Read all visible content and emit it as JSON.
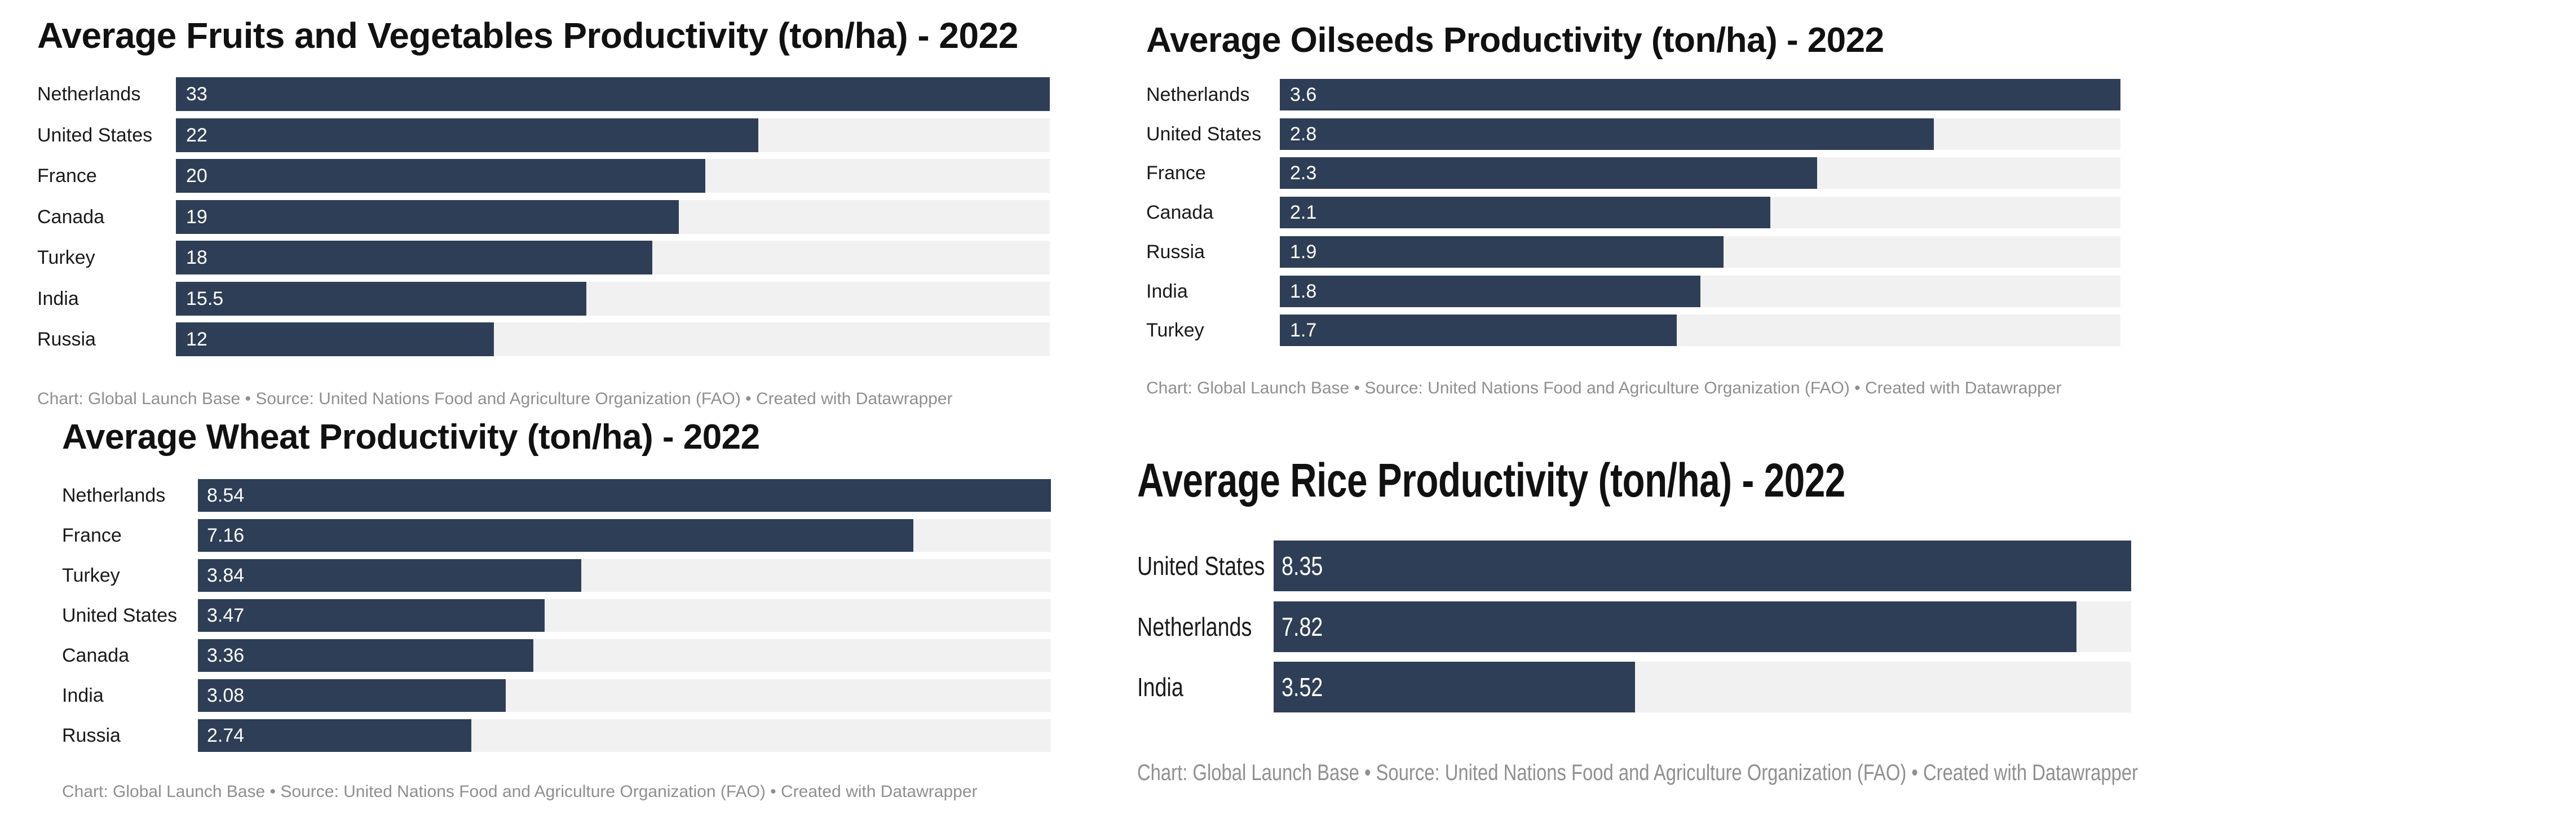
{
  "chart_data": [
    {
      "type": "bar",
      "orientation": "horizontal",
      "title": "Average Fruits and Vegetables Productivity (ton/ha) - 2022",
      "categories": [
        "Netherlands",
        "United States",
        "France",
        "Canada",
        "Turkey",
        "India",
        "Russia"
      ],
      "values": [
        33,
        22,
        20,
        19,
        18,
        15.5,
        12
      ],
      "value_labels": [
        "33",
        "22",
        "20",
        "19",
        "18",
        "15.5",
        "12"
      ],
      "xlim": [
        0,
        33
      ],
      "grid": false,
      "legend": "none",
      "footer": "Chart: Global Launch Base • Source: United Nations Food and Agriculture Organization (FAO) • Created with Datawrapper"
    },
    {
      "type": "bar",
      "orientation": "horizontal",
      "title": "Average Oilseeds Productivity (ton/ha) - 2022",
      "categories": [
        "Netherlands",
        "United States",
        "France",
        "Canada",
        "Russia",
        "India",
        "Turkey"
      ],
      "values": [
        3.6,
        2.8,
        2.3,
        2.1,
        1.9,
        1.8,
        1.7
      ],
      "value_labels": [
        "3.6",
        "2.8",
        "2.3",
        "2.1",
        "1.9",
        "1.8",
        "1.7"
      ],
      "xlim": [
        0,
        3.6
      ],
      "grid": false,
      "legend": "none",
      "footer": "Chart: Global Launch Base • Source: United Nations Food and Agriculture Organization (FAO) • Created with Datawrapper"
    },
    {
      "type": "bar",
      "orientation": "horizontal",
      "title": "Average Wheat Productivity (ton/ha) - 2022",
      "categories": [
        "Netherlands",
        "France",
        "Turkey",
        "United States",
        "Canada",
        "India",
        "Russia"
      ],
      "values": [
        8.54,
        7.16,
        3.84,
        3.47,
        3.36,
        3.08,
        2.74
      ],
      "value_labels": [
        "8.54",
        "7.16",
        "3.84",
        "3.47",
        "3.36",
        "3.08",
        "2.74"
      ],
      "xlim": [
        0,
        8.54
      ],
      "grid": false,
      "legend": "none",
      "footer": "Chart: Global Launch Base • Source: United Nations Food and Agriculture Organization (FAO) • Created with Datawrapper"
    },
    {
      "type": "bar",
      "orientation": "horizontal",
      "title": "Average Rice Productivity (ton/ha) - 2022",
      "categories": [
        "United States",
        "Netherlands",
        "India"
      ],
      "values": [
        8.35,
        7.82,
        3.52
      ],
      "value_labels": [
        "8.35",
        "7.82",
        "3.52"
      ],
      "xlim": [
        0,
        8.35
      ],
      "grid": false,
      "legend": "none",
      "footer": "Chart: Global Launch Base • Source: United Nations Food and Agriculture Organization (FAO) • Created with Datawrapper"
    }
  ],
  "colors": {
    "bar": "#2e3e56",
    "track": "#f1f1f1",
    "value_text": "#ffffff",
    "footer_text": "#8f8f8f",
    "background": "#ffffff"
  }
}
